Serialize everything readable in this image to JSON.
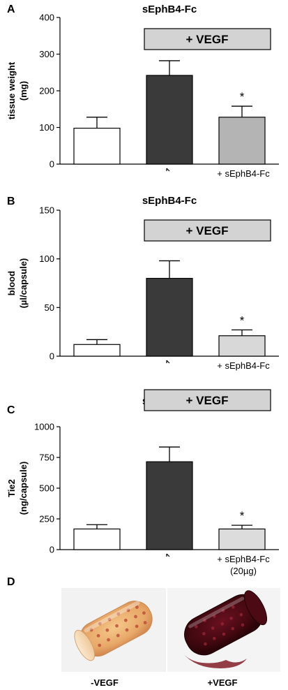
{
  "chart_data": [
    {
      "type": "bar",
      "panel": "A",
      "title": "sEphB4-Fc",
      "ylabel": "tissue weight (mg)",
      "ylabel_lines": [
        "tissue weight",
        "(mg)"
      ],
      "ylim": [
        0,
        400
      ],
      "yticks": [
        "0",
        "100",
        "200",
        "300",
        "400"
      ],
      "categories": [
        "",
        "",
        "+ sEphB4-Fc"
      ],
      "category_lines": [
        [
          ""
        ],
        [
          ""
        ],
        [
          "+ sEphB4-Fc"
        ]
      ],
      "values": [
        98,
        242,
        128
      ],
      "errors": [
        30,
        40,
        30
      ],
      "colors": [
        "#ffffff",
        "#3a3a3a",
        "#b4b4b4"
      ],
      "annotation_box": "+ VEGF",
      "significance": [
        "",
        "",
        "*"
      ]
    },
    {
      "type": "bar",
      "panel": "B",
      "title": "sEphB4-Fc",
      "ylabel": "blood (µl/capsule)",
      "ylabel_lines": [
        "blood",
        "(µl/capsule)"
      ],
      "ylim": [
        0,
        150
      ],
      "yticks": [
        "0",
        "50",
        "100",
        "150"
      ],
      "categories": [
        "",
        "",
        "+ sEphB4-Fc"
      ],
      "category_lines": [
        [
          ""
        ],
        [
          ""
        ],
        [
          "+ sEphB4-Fc"
        ]
      ],
      "values": [
        12,
        80,
        21
      ],
      "errors": [
        5,
        18,
        6
      ],
      "colors": [
        "#ffffff",
        "#3a3a3a",
        "#d8d8d8"
      ],
      "annotation_box": "+ VEGF",
      "significance": [
        "",
        "",
        "*"
      ]
    },
    {
      "type": "bar",
      "panel": "C",
      "title": "sEphB4-Fc",
      "ylabel": "Tie2 (ng/capsule)",
      "ylabel_lines": [
        "Tie2",
        "(ng/capsule)"
      ],
      "ylim": [
        0,
        1000
      ],
      "yticks": [
        "0",
        "250",
        "500",
        "750",
        "1000"
      ],
      "categories": [
        "",
        "",
        "+ sEphB4-Fc (20µg)"
      ],
      "category_lines": [
        [
          ""
        ],
        [
          ""
        ],
        [
          "+ sEphB4-Fc",
          "(20µg)"
        ]
      ],
      "values": [
        168,
        715,
        168
      ],
      "errors": [
        35,
        120,
        30
      ],
      "colors": [
        "#ffffff",
        "#3a3a3a",
        "#dcdcdc"
      ],
      "annotation_box": "+ VEGF",
      "significance": [
        "",
        "",
        "*"
      ]
    }
  ],
  "photo_panel": {
    "panel": "D",
    "captions": [
      "-VEGF",
      "+VEGF"
    ]
  }
}
